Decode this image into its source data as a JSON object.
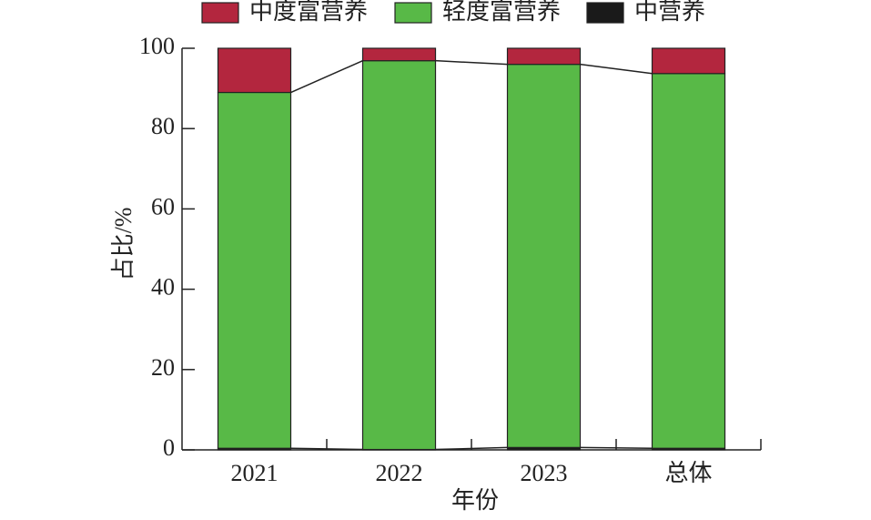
{
  "chart_data": {
    "type": "stacked_bar",
    "x_label": "年份",
    "y_label": "占比/%",
    "categories": [
      "2021",
      "2022",
      "2023",
      "总体"
    ],
    "series": [
      {
        "name": "中营养",
        "color": "#1a1a1a",
        "values": [
          0.4,
          0.1,
          0.6,
          0.4
        ]
      },
      {
        "name": "轻度富营养",
        "color": "#58b947",
        "values": [
          88.6,
          96.8,
          95.4,
          93.3
        ]
      },
      {
        "name": "中度富营养",
        "color": "#b3263e",
        "values": [
          11,
          3.1,
          4,
          6.3
        ]
      }
    ],
    "ylim": [
      0,
      100
    ],
    "yticks": [
      0,
      20,
      40,
      60,
      80,
      100
    ]
  }
}
